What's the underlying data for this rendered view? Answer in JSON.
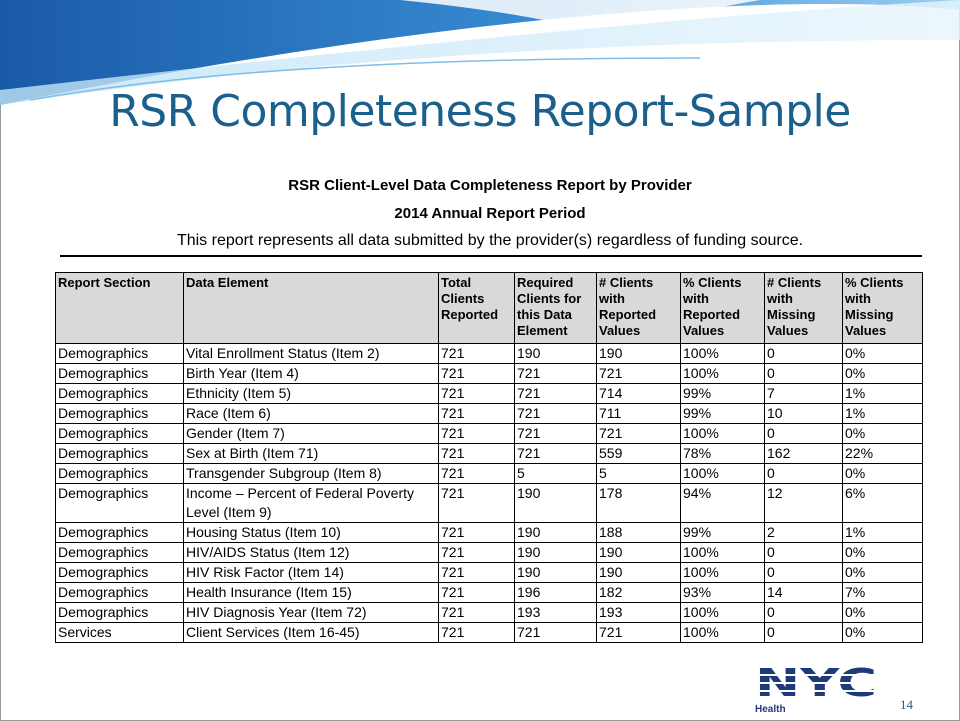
{
  "title": "RSR Completeness Report-Sample",
  "report": {
    "title": "RSR Client-Level Data Completeness Report by Provider",
    "period": "2014 Annual Report Period",
    "note": "This report represents all data submitted by the provider(s) regardless of funding source."
  },
  "table": {
    "header": [
      "Report Section",
      "Data Element",
      "Total Clients Reported",
      "Required Clients for this Data Element",
      "# Clients with Reported Values",
      "% Clients with Reported Values",
      "# Clients with Missing Values",
      "% Clients with Missing Values"
    ],
    "rows": [
      [
        "Demographics",
        "Vital Enrollment Status (Item 2)",
        "721",
        "190",
        "190",
        "100%",
        "0",
        "0%"
      ],
      [
        "Demographics",
        "Birth Year (Item 4)",
        "721",
        "721",
        "721",
        "100%",
        "0",
        "0%"
      ],
      [
        "Demographics",
        "Ethnicity (Item 5)",
        "721",
        "721",
        "714",
        "99%",
        "7",
        "1%"
      ],
      [
        "Demographics",
        "Race (Item 6)",
        "721",
        "721",
        "711",
        "99%",
        "10",
        "1%"
      ],
      [
        "Demographics",
        "Gender (Item 7)",
        "721",
        "721",
        "721",
        "100%",
        "0",
        "0%"
      ],
      [
        "Demographics",
        "Sex at Birth (Item 71)",
        "721",
        "721",
        "559",
        "78%",
        "162",
        "22%"
      ],
      [
        "Demographics",
        "Transgender Subgroup (Item 8)",
        "721",
        "5",
        "5",
        "100%",
        "0",
        "0%"
      ],
      [
        "Demographics",
        "Income – Percent of Federal Poverty Level (Item 9)",
        "721",
        "190",
        "178",
        "94%",
        "12",
        "6%"
      ],
      [
        "Demographics",
        "Housing Status (Item 10)",
        "721",
        "190",
        "188",
        "99%",
        "2",
        "1%"
      ],
      [
        "Demographics",
        "HIV/AIDS Status (Item 12)",
        "721",
        "190",
        "190",
        "100%",
        "0",
        "0%"
      ],
      [
        "Demographics",
        "HIV Risk Factor (Item 14)",
        "721",
        "190",
        "190",
        "100%",
        "0",
        "0%"
      ],
      [
        "Demographics",
        "Health Insurance (Item 15)",
        "721",
        "196",
        "182",
        "93%",
        "14",
        "7%"
      ],
      [
        "Demographics",
        "HIV Diagnosis Year (Item 72)",
        "721",
        "193",
        "193",
        "100%",
        "0",
        "0%"
      ],
      [
        "Services",
        "Client Services (Item 16-45)",
        "721",
        "721",
        "721",
        "100%",
        "0",
        "0%"
      ]
    ]
  },
  "logo": {
    "name": "NYC",
    "sub": "Health"
  },
  "page_number": "14"
}
